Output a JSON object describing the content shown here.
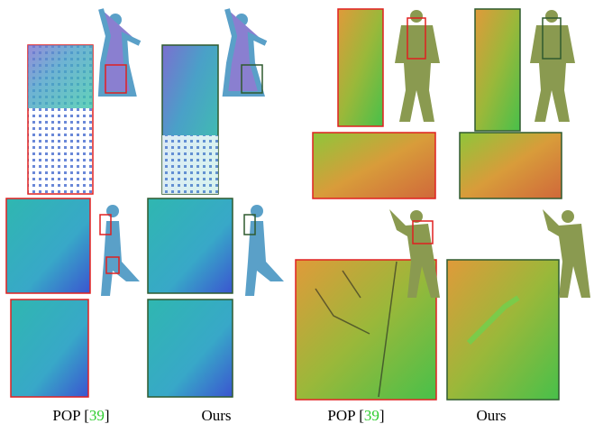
{
  "captions": [
    {
      "parts": [
        "POP [",
        "39",
        "]"
      ]
    },
    {
      "parts": [
        "Ours"
      ]
    },
    {
      "parts": [
        "POP [",
        "39",
        "]"
      ]
    },
    {
      "parts": [
        "Ours"
      ]
    }
  ]
}
